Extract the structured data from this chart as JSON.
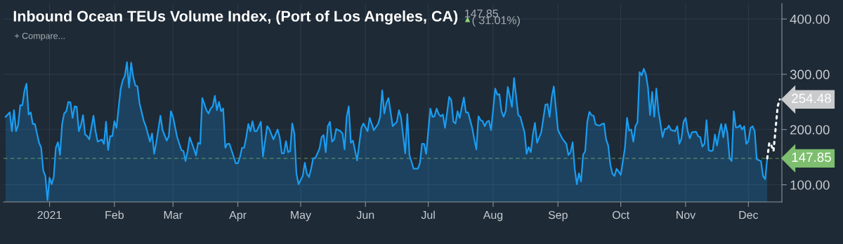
{
  "chart_data": {
    "type": "area",
    "title": "Inbound Ocean TEUs Volume Index, (Port of Los Angeles, CA)",
    "annotations": [
      "147.85",
      "( 31.01%)",
      "+ Compare..."
    ],
    "xlim": [
      "2020-12-10",
      "2021-12-17"
    ],
    "xticks": [
      {
        "value": "2021-01-01",
        "label": "2021"
      },
      {
        "value": "2021-02-01",
        "label": "Feb"
      },
      {
        "value": "2021-03-01",
        "label": "Mar"
      },
      {
        "value": "2021-04-01",
        "label": "Apr"
      },
      {
        "value": "2021-05-01",
        "label": "May"
      },
      {
        "value": "2021-06-01",
        "label": "Jun"
      },
      {
        "value": "2021-07-01",
        "label": "Jul"
      },
      {
        "value": "2021-08-01",
        "label": "Aug"
      },
      {
        "value": "2021-09-01",
        "label": "Sep"
      },
      {
        "value": "2021-10-01",
        "label": "Oct"
      },
      {
        "value": "2021-11-01",
        "label": "Nov"
      },
      {
        "value": "2021-12-01",
        "label": "Dec"
      }
    ],
    "ylim": [
      69,
      428
    ],
    "yticks": [
      {
        "value": 100,
        "label": "100.00"
      },
      {
        "value": 200,
        "label": "200.00"
      },
      {
        "value": 300,
        "label": "300.00"
      },
      {
        "value": 400,
        "label": "400.00"
      }
    ],
    "grid": true,
    "ref_lines": [
      {
        "axis": "y",
        "value": 147.85,
        "label": "147.85",
        "color": "#7dbf6e",
        "line_style": "dashed"
      }
    ],
    "series": [
      {
        "color": "#1a9cf0",
        "x": [
          "2020-12-11",
          "2020-12-13",
          "2020-12-14",
          "2020-12-15",
          "2020-12-16",
          "2020-12-17",
          "2020-12-18",
          "2020-12-19",
          "2020-12-20",
          "2020-12-21",
          "2020-12-22",
          "2020-12-23",
          "2020-12-24",
          "2020-12-25",
          "2020-12-27",
          "2020-12-28",
          "2020-12-29",
          "2020-12-30",
          "2020-12-31",
          "2021-01-01",
          "2021-01-02",
          "2021-01-03",
          "2021-01-04",
          "2021-01-05",
          "2021-01-06",
          "2021-01-07",
          "2021-01-08",
          "2021-01-09",
          "2021-01-10",
          "2021-01-11",
          "2021-01-12",
          "2021-01-13",
          "2021-01-14",
          "2021-01-15",
          "2021-01-16",
          "2021-01-17",
          "2021-01-18",
          "2021-01-19",
          "2021-01-20",
          "2021-01-22",
          "2021-01-23",
          "2021-01-24",
          "2021-01-26",
          "2021-01-27",
          "2021-01-28",
          "2021-01-29",
          "2021-01-30",
          "2021-01-31",
          "2021-02-01",
          "2021-02-02",
          "2021-02-04",
          "2021-02-05",
          "2021-02-06",
          "2021-02-07",
          "2021-02-08",
          "2021-02-09",
          "2021-02-10",
          "2021-02-11",
          "2021-02-12",
          "2021-02-13",
          "2021-02-15",
          "2021-02-16",
          "2021-02-18",
          "2021-02-19",
          "2021-02-20",
          "2021-02-21",
          "2021-02-23",
          "2021-02-24",
          "2021-02-26",
          "2021-02-27",
          "2021-02-28",
          "2021-03-01",
          "2021-03-03",
          "2021-03-05",
          "2021-03-06",
          "2021-03-07",
          "2021-03-08",
          "2021-03-09",
          "2021-03-11",
          "2021-03-12",
          "2021-03-13",
          "2021-03-14",
          "2021-03-15",
          "2021-03-17",
          "2021-03-18",
          "2021-03-19",
          "2021-03-20",
          "2021-03-21",
          "2021-03-22",
          "2021-03-23",
          "2021-03-24",
          "2021-03-25",
          "2021-03-26",
          "2021-03-27",
          "2021-03-28",
          "2021-03-31",
          "2021-04-01",
          "2021-04-02",
          "2021-04-03",
          "2021-04-04",
          "2021-04-05",
          "2021-04-06",
          "2021-04-07",
          "2021-04-08",
          "2021-04-09",
          "2021-04-10",
          "2021-04-12",
          "2021-04-13",
          "2021-04-15",
          "2021-04-16",
          "2021-04-18",
          "2021-04-20",
          "2021-04-21",
          "2021-04-22",
          "2021-04-23",
          "2021-04-24",
          "2021-04-25",
          "2021-04-26",
          "2021-04-27",
          "2021-04-28",
          "2021-04-29",
          "2021-04-30",
          "2021-05-02",
          "2021-05-03",
          "2021-05-04",
          "2021-05-05",
          "2021-05-06",
          "2021-05-07",
          "2021-05-08",
          "2021-05-10",
          "2021-05-11",
          "2021-05-12",
          "2021-05-13",
          "2021-05-14",
          "2021-05-15",
          "2021-05-16",
          "2021-05-17",
          "2021-05-18",
          "2021-05-20",
          "2021-05-21",
          "2021-05-22",
          "2021-05-23",
          "2021-05-24",
          "2021-05-25",
          "2021-05-26",
          "2021-05-28",
          "2021-05-30",
          "2021-05-31",
          "2021-06-02",
          "2021-06-03",
          "2021-06-05",
          "2021-06-07",
          "2021-06-08",
          "2021-06-09",
          "2021-06-10",
          "2021-06-11",
          "2021-06-12",
          "2021-06-14",
          "2021-06-16",
          "2021-06-17",
          "2021-06-18",
          "2021-06-20",
          "2021-06-21",
          "2021-06-22",
          "2021-06-24",
          "2021-06-26",
          "2021-06-27",
          "2021-06-28",
          "2021-06-29",
          "2021-06-30",
          "2021-07-02",
          "2021-07-03",
          "2021-07-04",
          "2021-07-05",
          "2021-07-06",
          "2021-07-07",
          "2021-07-08",
          "2021-07-09",
          "2021-07-11",
          "2021-07-12",
          "2021-07-13",
          "2021-07-14",
          "2021-07-15",
          "2021-07-16",
          "2021-07-18",
          "2021-07-19",
          "2021-07-20",
          "2021-07-22",
          "2021-07-23",
          "2021-07-24",
          "2021-07-25",
          "2021-07-26",
          "2021-07-27",
          "2021-07-28",
          "2021-07-29",
          "2021-07-30",
          "2021-07-31",
          "2021-08-02",
          "2021-08-03",
          "2021-08-04",
          "2021-08-05",
          "2021-08-06",
          "2021-08-07",
          "2021-08-08",
          "2021-08-10",
          "2021-08-11",
          "2021-08-13",
          "2021-08-14",
          "2021-08-16",
          "2021-08-17",
          "2021-08-18",
          "2021-08-19",
          "2021-08-20",
          "2021-08-21",
          "2021-08-22",
          "2021-08-24",
          "2021-08-26",
          "2021-08-27",
          "2021-08-28",
          "2021-08-29",
          "2021-08-30",
          "2021-09-01",
          "2021-09-03",
          "2021-09-05",
          "2021-09-06",
          "2021-09-07",
          "2021-09-08",
          "2021-09-09",
          "2021-09-10",
          "2021-09-11",
          "2021-09-12",
          "2021-09-13",
          "2021-09-14",
          "2021-09-15",
          "2021-09-16",
          "2021-09-17",
          "2021-09-18",
          "2021-09-19",
          "2021-09-21",
          "2021-09-22",
          "2021-09-23",
          "2021-09-24",
          "2021-09-25",
          "2021-09-26",
          "2021-09-27",
          "2021-09-28",
          "2021-09-29",
          "2021-09-30",
          "2021-10-01",
          "2021-10-03",
          "2021-10-04",
          "2021-10-05",
          "2021-10-06",
          "2021-10-07",
          "2021-10-08",
          "2021-10-09",
          "2021-10-10",
          "2021-10-11",
          "2021-10-12",
          "2021-10-13",
          "2021-10-14",
          "2021-10-15",
          "2021-10-16",
          "2021-10-17",
          "2021-10-18",
          "2021-10-19",
          "2021-10-21",
          "2021-10-22",
          "2021-10-23",
          "2021-10-24",
          "2021-10-25",
          "2021-10-27",
          "2021-10-28",
          "2021-10-29",
          "2021-10-30",
          "2021-10-31",
          "2021-11-01",
          "2021-11-02",
          "2021-11-03",
          "2021-11-04",
          "2021-11-06",
          "2021-11-07",
          "2021-11-08",
          "2021-11-09",
          "2021-11-10",
          "2021-11-11",
          "2021-11-12",
          "2021-11-13",
          "2021-11-14",
          "2021-11-15",
          "2021-11-16",
          "2021-11-17",
          "2021-11-18",
          "2021-11-19",
          "2021-11-20",
          "2021-11-21",
          "2021-11-22",
          "2021-11-23",
          "2021-11-24",
          "2021-11-25",
          "2021-11-26",
          "2021-11-27",
          "2021-11-28",
          "2021-11-29",
          "2021-11-30",
          "2021-12-01",
          "2021-12-02",
          "2021-12-03",
          "2021-12-04",
          "2021-12-05",
          "2021-12-07",
          "2021-12-08",
          "2021-12-09",
          "2021-12-10"
        ],
        "values": [
          223,
          231,
          197,
          235,
          197,
          208,
          244,
          244,
          270,
          283,
          227,
          231,
          210,
          210,
          176,
          167,
          126,
          116,
          72,
          113,
          101,
          114,
          167,
          177,
          154,
          210,
          229,
          233,
          250,
          249,
          221,
          242,
          241,
          197,
          208,
          226,
          191,
          188,
          182,
          225,
          197,
          178,
          182,
          174,
          214,
          163,
          188,
          188,
          215,
          203,
          274,
          289,
          297,
          322,
          276,
          321,
          295,
          280,
          278,
          248,
          216,
          206,
          178,
          193,
          156,
          176,
          225,
          199,
          180,
          188,
          233,
          223,
          186,
          163,
          161,
          143,
          161,
          186,
          165,
          153,
          176,
          174,
          257,
          235,
          229,
          238,
          242,
          261,
          235,
          250,
          233,
          238,
          167,
          174,
          174,
          139,
          139,
          150,
          167,
          167,
          186,
          210,
          197,
          215,
          197,
          197,
          214,
          151,
          206,
          201,
          182,
          200,
          186,
          157,
          157,
          179,
          159,
          161,
          211,
          193,
          120,
          101,
          116,
          140,
          120,
          114,
          129,
          148,
          148,
          165,
          186,
          190,
          159,
          206,
          214,
          178,
          182,
          201,
          197,
          193,
          164,
          223,
          242,
          176,
          180,
          144,
          203,
          211,
          197,
          221,
          199,
          210,
          223,
          271,
          229,
          248,
          257,
          206,
          214,
          235,
          221,
          157,
          228,
          154,
          129,
          129,
          139,
          174,
          174,
          156,
          238,
          223,
          224,
          238,
          228,
          224,
          227,
          203,
          259,
          253,
          214,
          211,
          233,
          221,
          258,
          231,
          231,
          203,
          182,
          164,
          224,
          217,
          215,
          206,
          214,
          216,
          199,
          274,
          263,
          264,
          233,
          223,
          233,
          277,
          241,
          293,
          226,
          223,
          195,
          156,
          168,
          159,
          191,
          212,
          176,
          195,
          245,
          246,
          223,
          259,
          278,
          199,
          184,
          174,
          154,
          159,
          177,
          129,
          101,
          121,
          106,
          154,
          161,
          214,
          232,
          226,
          225,
          209,
          207,
          210,
          211,
          182,
          171,
          137,
          120,
          116,
          129,
          124,
          118,
          167,
          221,
          198,
          200,
          178,
          206,
          213,
          304,
          298,
          310,
          300,
          276,
          226,
          268,
          223,
          274,
          234,
          186,
          201,
          201,
          207,
          199,
          197,
          206,
          174,
          184,
          214,
          221,
          197,
          184,
          195,
          196,
          188,
          186,
          169,
          174,
          217,
          163,
          161,
          162,
          191,
          171,
          193,
          210,
          186,
          210,
          193,
          148,
          143,
          233,
          204,
          204,
          208,
          200,
          206,
          174,
          179,
          203,
          206,
          197,
          146,
          143,
          116,
          110,
          147.85
        ]
      },
      {
        "type": "line",
        "color": "#ffffff",
        "line_style": "dotted",
        "x": [
          "2021-12-10",
          "2021-12-11",
          "2021-12-12",
          "2021-12-13",
          "2021-12-15",
          "2021-12-16"
        ],
        "values": [
          147.85,
          176,
          171,
          161,
          242,
          254.48
        ],
        "value_labels": [
          null,
          null,
          null,
          null,
          null,
          "254.48"
        ]
      }
    ]
  }
}
